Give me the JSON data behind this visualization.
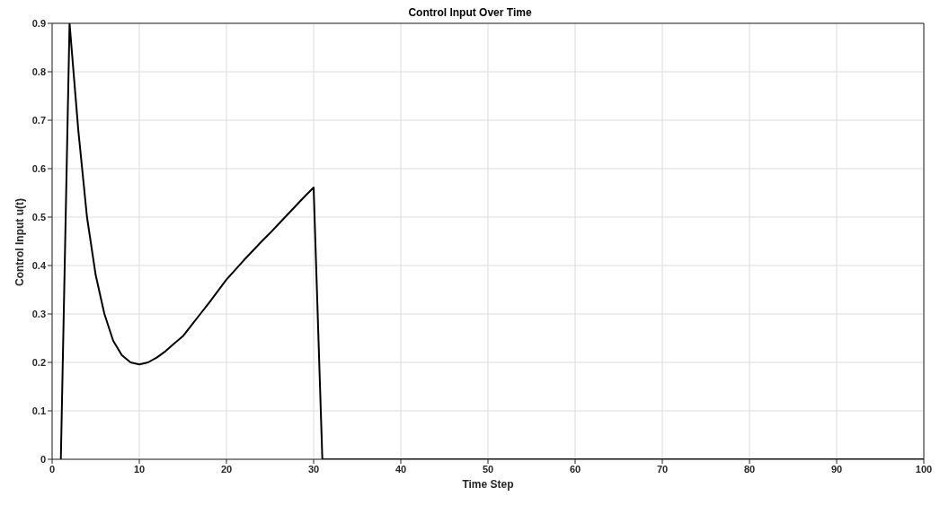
{
  "chart_data": {
    "type": "line",
    "title": "Control Input Over Time",
    "xlabel": "Time Step",
    "ylabel": "Control Input u(t)",
    "x": [
      1,
      2,
      3,
      4,
      5,
      6,
      7,
      8,
      9,
      10,
      11,
      12,
      13,
      14,
      15,
      16,
      17,
      18,
      19,
      20,
      21,
      22,
      23,
      24,
      25,
      26,
      27,
      28,
      29,
      30,
      31,
      40,
      50,
      60,
      70,
      80,
      90,
      100
    ],
    "series": [
      {
        "color": "#000000",
        "values": [
          0,
          0.9,
          0.68,
          0.5,
          0.38,
          0.3,
          0.245,
          0.215,
          0.2,
          0.196,
          0.2,
          0.21,
          0.223,
          0.239,
          0.254,
          0.277,
          0.3,
          0.323,
          0.347,
          0.371,
          0.391,
          0.411,
          0.43,
          0.449,
          0.467,
          0.486,
          0.505,
          0.524,
          0.543,
          0.561,
          0,
          0,
          0,
          0,
          0,
          0,
          0,
          0
        ]
      }
    ],
    "xlim": [
      0,
      100
    ],
    "xticks": [
      0,
      10,
      20,
      30,
      40,
      50,
      60,
      70,
      80,
      90,
      100
    ],
    "ylim": [
      0,
      0.9
    ],
    "yticks": [
      0,
      0.1,
      0.2,
      0.3,
      0.4,
      0.5,
      0.6,
      0.7,
      0.8,
      0.9
    ],
    "grid": true,
    "marker": "none",
    "line_style": "solid"
  }
}
